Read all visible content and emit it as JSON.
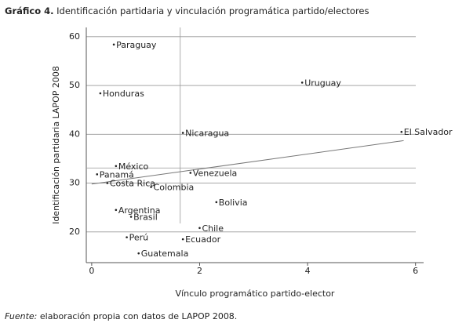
{
  "chart_data": {
    "type": "scatter",
    "title_prefix": "Gráfico 4.",
    "title": "Identificación partidaria y vinculación programática partido/electores",
    "xlabel": "Vínculo programático partido-elector",
    "ylabel": "Identificación partidaria LAPOP 2008",
    "source_prefix": "Fuente:",
    "source": "elaboración propia con datos de LAPOP 2008.",
    "categories": [
      "Paraguay",
      "Uruguay",
      "Honduras",
      "Nicaragua",
      "El Salvador",
      "México",
      "Venezuela",
      "Panamá",
      "Costa Rica",
      "Colombia",
      "Bolivia",
      "Argentina",
      "Brasil",
      "Chile",
      "Perú",
      "Ecuador",
      "Guatemala"
    ],
    "x": [
      0.41,
      3.9,
      0.16,
      1.69,
      5.74,
      0.45,
      1.83,
      0.1,
      0.29,
      1.1,
      2.31,
      0.45,
      0.73,
      2.0,
      0.65,
      1.69,
      0.87
    ],
    "values": [
      58.4,
      50.6,
      48.4,
      40.3,
      40.5,
      33.5,
      32.1,
      31.8,
      30.0,
      29.2,
      26.1,
      24.5,
      23.1,
      20.8,
      18.9,
      18.5,
      15.6
    ],
    "color": "#222222",
    "xlim": [
      -0.1,
      6.15
    ],
    "ylim": [
      13.7,
      61.9
    ],
    "xticks": [
      0,
      2,
      4,
      6
    ],
    "yticks": [
      20,
      30,
      40,
      50,
      60
    ],
    "grid": true,
    "reference_lines": {
      "x": 1.64,
      "y": 33.1
    },
    "trend_line": {
      "x": [
        0,
        5.78
      ],
      "y": [
        29.8,
        38.7
      ]
    }
  }
}
